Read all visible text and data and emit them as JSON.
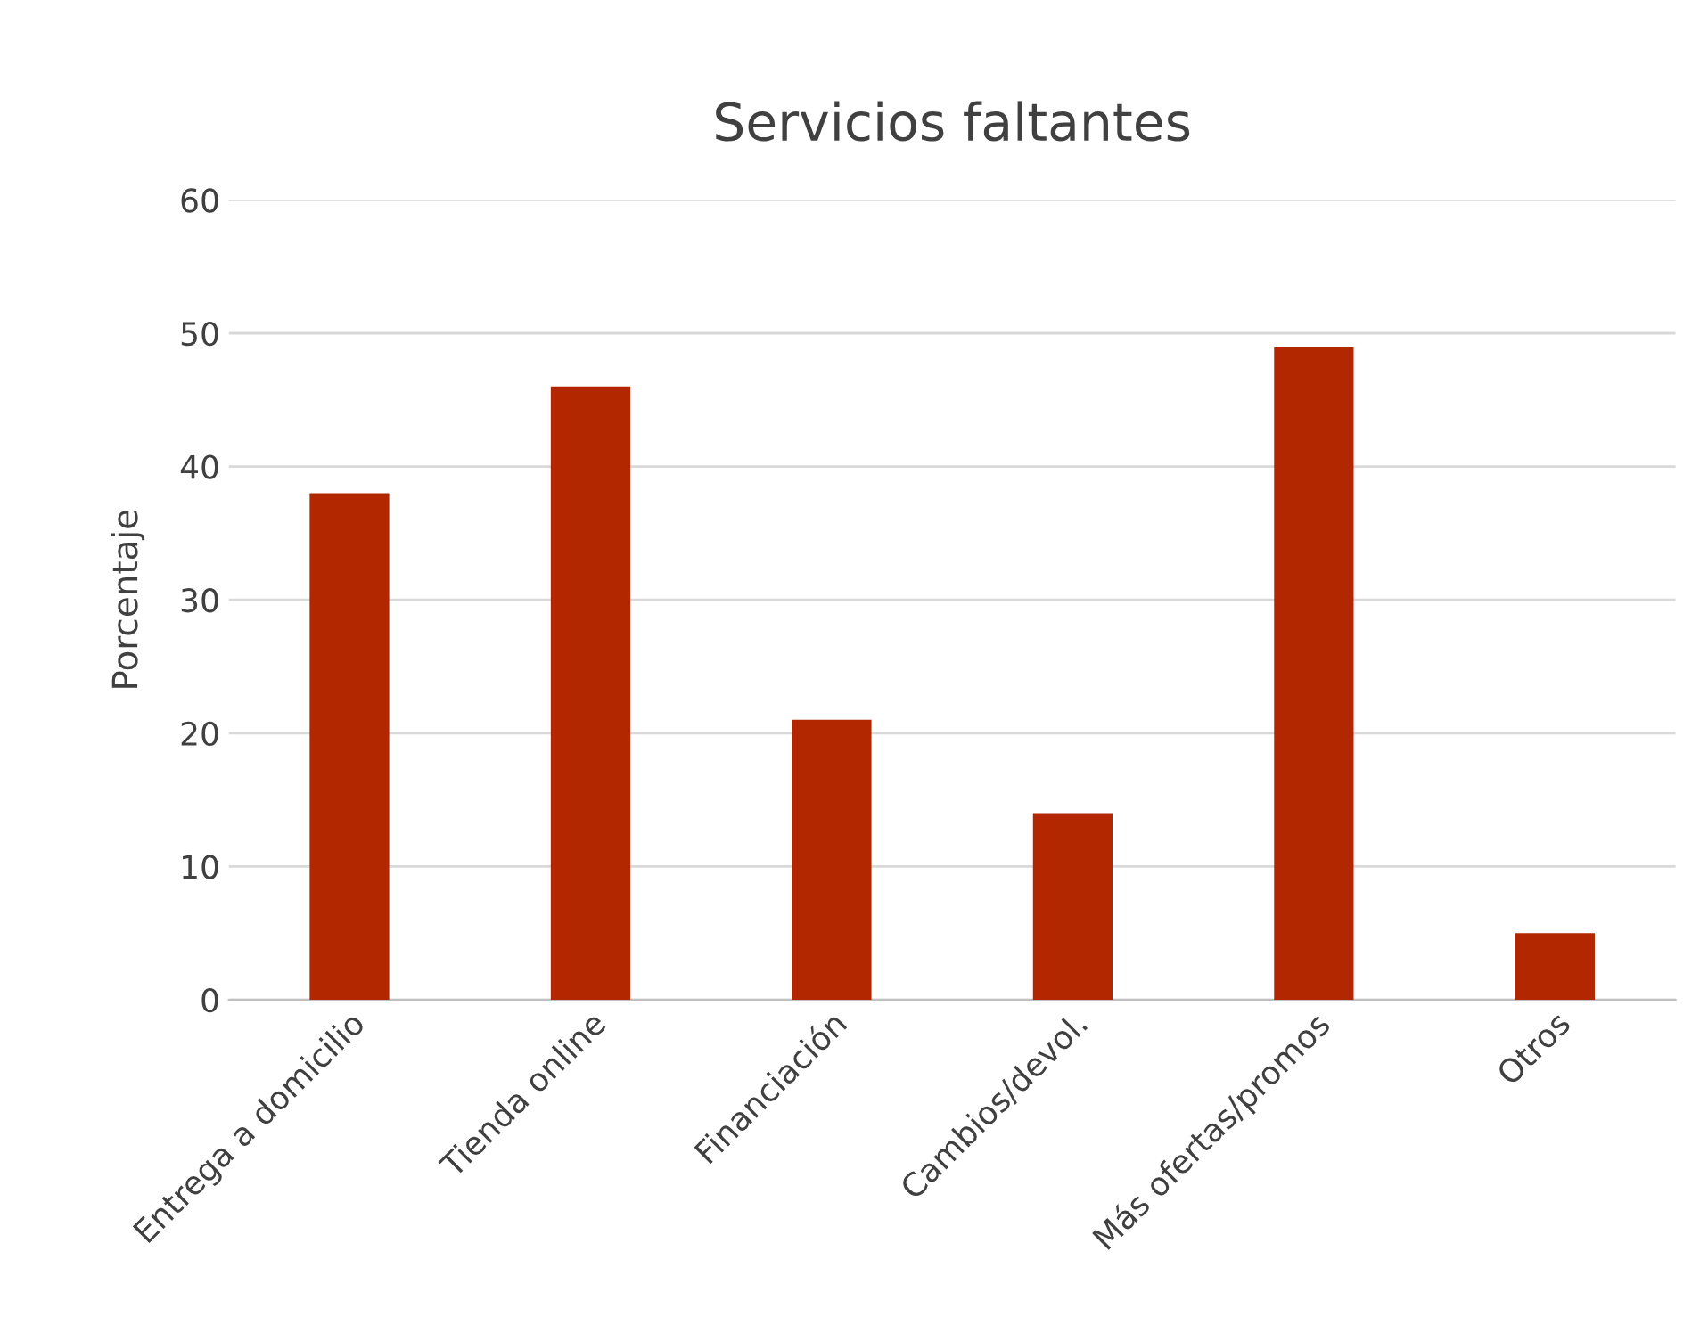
{
  "chart_data": {
    "type": "bar",
    "title": "Servicios faltantes",
    "ylabel": "Porcentaje",
    "categories": [
      "Entrega a domicilio",
      "Tienda online",
      "Financiación",
      "Cambios/devol.",
      "Más ofertas/promos",
      "Otros"
    ],
    "values": [
      38,
      46,
      21,
      14,
      49,
      5
    ],
    "color": "#b22600",
    "ylim": [
      0,
      60
    ],
    "yticks": [
      0,
      10,
      20,
      30,
      40,
      50,
      60
    ],
    "grid": "y",
    "legend": false
  }
}
